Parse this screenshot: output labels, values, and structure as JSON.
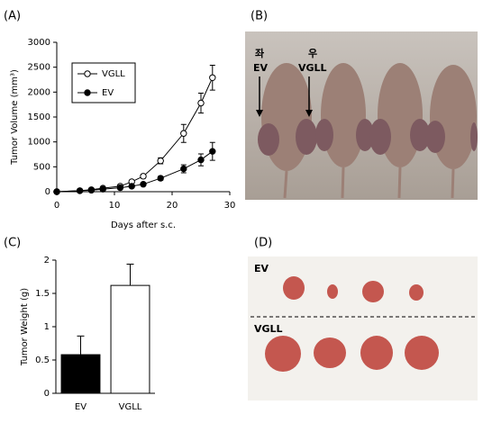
{
  "panels": {
    "labels": [
      "(A)",
      "(B)",
      "(C)",
      "(D)"
    ]
  },
  "photo_b": {
    "left_top": "좌",
    "left_label": "EV",
    "right_top": "우",
    "right_label": "VGLL"
  },
  "photo_d": {
    "top_label": "EV",
    "bottom_label": "VGLL"
  },
  "chart_data": [
    {
      "type": "line",
      "xlabel": "Days after s.c.",
      "ylabel": "Tumor Volume (mm³)",
      "x": [
        0,
        4,
        6,
        8,
        11,
        13,
        15,
        18,
        22,
        25,
        27
      ],
      "series": [
        {
          "name": "VGLL",
          "color": "#000000",
          "marker_fill": "#ffffff",
          "values": [
            0,
            20,
            40,
            70,
            110,
            200,
            310,
            620,
            1170,
            1780,
            2290
          ],
          "errors": [
            0,
            10,
            10,
            15,
            20,
            30,
            40,
            60,
            180,
            200,
            250
          ]
        },
        {
          "name": "EV",
          "color": "#000000",
          "marker_fill": "#000000",
          "values": [
            0,
            20,
            30,
            50,
            80,
            110,
            150,
            270,
            460,
            640,
            810
          ],
          "errors": [
            0,
            10,
            10,
            10,
            15,
            20,
            25,
            40,
            80,
            120,
            180
          ]
        }
      ],
      "xlim": [
        0,
        30
      ],
      "xticks": [
        0,
        10,
        20,
        30
      ],
      "ylim": [
        0,
        3000
      ],
      "yticks": [
        0,
        500,
        1000,
        1500,
        2000,
        2500,
        3000
      ],
      "legend": "upper left"
    },
    {
      "type": "bar",
      "ylabel": "Tumor Weight (g)",
      "categories": [
        "EV",
        "VGLL"
      ],
      "values": [
        0.58,
        1.62
      ],
      "errors": [
        0.28,
        0.32
      ],
      "colors": [
        "#000000",
        "#ffffff"
      ],
      "ylim": [
        0,
        2
      ],
      "yticks": [
        0,
        0.5,
        1,
        1.5,
        2
      ]
    }
  ]
}
